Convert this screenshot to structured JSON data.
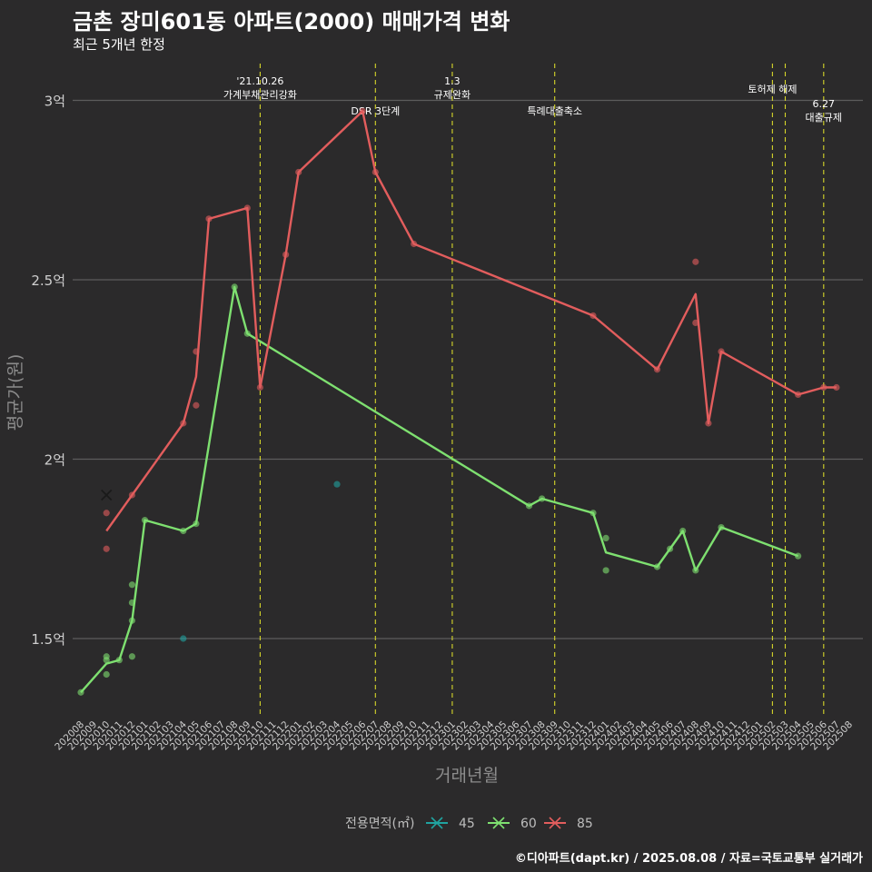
{
  "header": {
    "title": "금촌 장미601동 아파트(2000) 매매가격 변화",
    "subtitle": "최근 5개년 한정",
    "caption": "©디아파트(dapt.kr) / 2025.08.08 / 자료=국토교통부 실거래가"
  },
  "chart_data": {
    "type": "line",
    "xlabel": "거래년월",
    "ylabel": "평균가(원)",
    "ylim": [
      1.22,
      3.1
    ],
    "y_ticks": [
      {
        "value": 1.5,
        "label": "1.5억"
      },
      {
        "value": 2.0,
        "label": "2억"
      },
      {
        "value": 2.5,
        "label": "2.5억"
      },
      {
        "value": 3.0,
        "label": "3억"
      }
    ],
    "categories": [
      "202008",
      "202009",
      "202010",
      "202011",
      "202012",
      "202101",
      "202102",
      "202103",
      "202104",
      "202105",
      "202106",
      "202107",
      "202108",
      "202109",
      "202110",
      "202111",
      "202112",
      "202201",
      "202202",
      "202203",
      "202204",
      "202205",
      "202206",
      "202207",
      "202208",
      "202209",
      "202210",
      "202211",
      "202212",
      "202301",
      "202302",
      "202303",
      "202304",
      "202305",
      "202306",
      "202307",
      "202308",
      "202309",
      "202310",
      "202311",
      "202312",
      "202401",
      "202402",
      "202403",
      "202404",
      "202405",
      "202406",
      "202407",
      "202408",
      "202409",
      "202410",
      "202411",
      "202412",
      "202501",
      "202502",
      "202503",
      "202504",
      "202505",
      "202506",
      "202507",
      "202508"
    ],
    "grid": true,
    "legend": {
      "title": "전용면적(㎡)",
      "position": "bottom"
    },
    "events": [
      {
        "x": 14.0,
        "lines": [
          "'21.10.26",
          "가계부채관리강화"
        ],
        "row": 0
      },
      {
        "x": 23.0,
        "lines": [
          "DSR 3단계"
        ],
        "row": 2
      },
      {
        "x": 29.0,
        "lines": [
          "1.3",
          "규제완화"
        ],
        "row": 0
      },
      {
        "x": 37.0,
        "lines": [
          "특례대출축소"
        ],
        "row": 2
      },
      {
        "x": 54.0,
        "lines": [
          "토허제 해제"
        ],
        "row": 1
      },
      {
        "x": 55.0,
        "lines": [],
        "row": 1
      },
      {
        "x": 58.0,
        "lines": [
          "6.27",
          "대출규제"
        ],
        "row": 3
      }
    ],
    "series": [
      {
        "name": "45",
        "color": "#20a3a0",
        "line": [],
        "points": [
          [
            8,
            1.5
          ],
          [
            20,
            1.93
          ]
        ]
      },
      {
        "name": "60",
        "color": "#7ee070",
        "line": [
          [
            0,
            1.35
          ],
          [
            2,
            1.43
          ],
          [
            3,
            1.44
          ],
          [
            4,
            1.55
          ],
          [
            5,
            1.83
          ],
          [
            8,
            1.8
          ],
          [
            9,
            1.82
          ],
          [
            12,
            2.48
          ],
          [
            13,
            2.35
          ],
          [
            35,
            1.87
          ],
          [
            36,
            1.89
          ],
          [
            40,
            1.85
          ],
          [
            41,
            1.74
          ],
          [
            45,
            1.7
          ],
          [
            47,
            1.8
          ],
          [
            48,
            1.69
          ],
          [
            50,
            1.81
          ],
          [
            56,
            1.73
          ]
        ],
        "points": [
          [
            0,
            1.35
          ],
          [
            2,
            1.44
          ],
          [
            2,
            1.45
          ],
          [
            2,
            1.4
          ],
          [
            3,
            1.44
          ],
          [
            4,
            1.55
          ],
          [
            4,
            1.6
          ],
          [
            4,
            1.65
          ],
          [
            4,
            1.45
          ],
          [
            5,
            1.83
          ],
          [
            8,
            1.8
          ],
          [
            9,
            1.82
          ],
          [
            12,
            2.48
          ],
          [
            13,
            2.35
          ],
          [
            35,
            1.87
          ],
          [
            36,
            1.89
          ],
          [
            40,
            1.85
          ],
          [
            41,
            1.78
          ],
          [
            41,
            1.69
          ],
          [
            45,
            1.7
          ],
          [
            46,
            1.75
          ],
          [
            47,
            1.8
          ],
          [
            48,
            1.69
          ],
          [
            50,
            1.81
          ],
          [
            56,
            1.73
          ]
        ]
      },
      {
        "name": "85",
        "color": "#e25d5d",
        "line": [
          [
            2,
            1.8
          ],
          [
            4,
            1.9
          ],
          [
            8,
            2.1
          ],
          [
            9,
            2.23
          ],
          [
            10,
            2.67
          ],
          [
            13,
            2.7
          ],
          [
            14,
            2.2
          ],
          [
            16,
            2.57
          ],
          [
            17,
            2.8
          ],
          [
            22,
            2.97
          ],
          [
            23,
            2.8
          ],
          [
            26,
            2.6
          ],
          [
            40,
            2.4
          ],
          [
            45,
            2.25
          ],
          [
            48,
            2.46
          ],
          [
            49,
            2.1
          ],
          [
            50,
            2.3
          ],
          [
            56,
            2.18
          ],
          [
            58,
            2.2
          ],
          [
            59,
            2.2
          ]
        ],
        "points": [
          [
            2,
            1.85
          ],
          [
            2,
            1.75
          ],
          [
            4,
            1.9
          ],
          [
            8,
            2.1
          ],
          [
            9,
            2.3
          ],
          [
            9,
            2.15
          ],
          [
            10,
            2.67
          ],
          [
            13,
            2.7
          ],
          [
            14,
            2.2
          ],
          [
            16,
            2.57
          ],
          [
            17,
            2.8
          ],
          [
            22,
            2.97
          ],
          [
            23,
            2.8
          ],
          [
            26,
            2.6
          ],
          [
            40,
            2.4
          ],
          [
            45,
            2.25
          ],
          [
            48,
            2.55
          ],
          [
            48,
            2.38
          ],
          [
            49,
            2.1
          ],
          [
            50,
            2.3
          ],
          [
            56,
            2.18
          ],
          [
            58,
            2.2
          ],
          [
            59,
            2.2
          ]
        ],
        "markers_x": [
          [
            2,
            1.9
          ]
        ]
      }
    ]
  }
}
